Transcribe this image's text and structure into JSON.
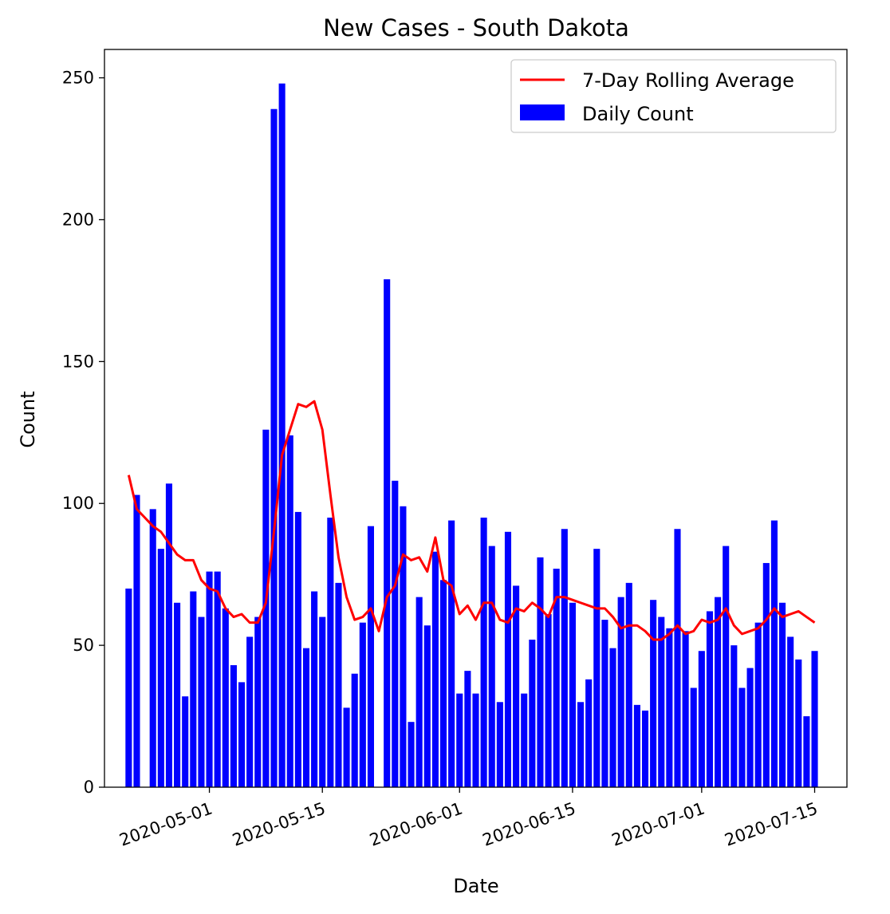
{
  "chart_data": {
    "type": "bar",
    "title": "New Cases - South Dakota",
    "xlabel": "Date",
    "ylabel": "Count",
    "ylim": [
      0,
      260
    ],
    "xlim": [
      "2020-04-18",
      "2020-07-19"
    ],
    "yticks": [
      0,
      50,
      100,
      150,
      200,
      250
    ],
    "xticks": [
      "2020-05-01",
      "2020-05-15",
      "2020-06-01",
      "2020-06-15",
      "2020-07-01",
      "2020-07-15"
    ],
    "grid": false,
    "legend_position": "top-right",
    "colors": {
      "bars": "#0000ff",
      "line": "#ff0000"
    },
    "start_date": "2020-04-21",
    "series": [
      {
        "name": "Daily Count",
        "kind": "bar",
        "values": [
          70,
          103,
          null,
          98,
          84,
          107,
          65,
          32,
          69,
          60,
          76,
          76,
          63,
          43,
          37,
          53,
          60,
          126,
          239,
          248,
          124,
          97,
          49,
          69,
          60,
          95,
          72,
          28,
          40,
          58,
          92,
          null,
          179,
          108,
          99,
          23,
          67,
          57,
          83,
          73,
          94,
          33,
          41,
          33,
          95,
          85,
          30,
          90,
          71,
          33,
          52,
          81,
          61,
          77,
          91,
          65,
          30,
          38,
          84,
          59,
          49,
          67,
          72,
          29,
          27,
          66,
          60,
          56,
          91,
          55,
          35,
          48,
          62,
          67,
          85,
          50,
          35,
          42,
          58,
          79,
          94,
          65,
          53,
          45,
          25,
          48
        ]
      },
      {
        "name": "7-Day Rolling Average",
        "kind": "line",
        "values": [
          110,
          98,
          95,
          92,
          90,
          86,
          82,
          80,
          80,
          73,
          70,
          69,
          63,
          60,
          61,
          58,
          58,
          65,
          90,
          117,
          126,
          135,
          134,
          136,
          126,
          103,
          81,
          67,
          59,
          60,
          63,
          55,
          67,
          71,
          82,
          80,
          81,
          76,
          88,
          73,
          71,
          61,
          64,
          59,
          65,
          65,
          59,
          58,
          63,
          62,
          65,
          63,
          60,
          67,
          67,
          66,
          65,
          64,
          63,
          63,
          60,
          56,
          57,
          57,
          55,
          52,
          52,
          54,
          57,
          54,
          55,
          59,
          58,
          59,
          63,
          57,
          54,
          55,
          56,
          59,
          63,
          60,
          61,
          62,
          60,
          58
        ]
      }
    ]
  }
}
